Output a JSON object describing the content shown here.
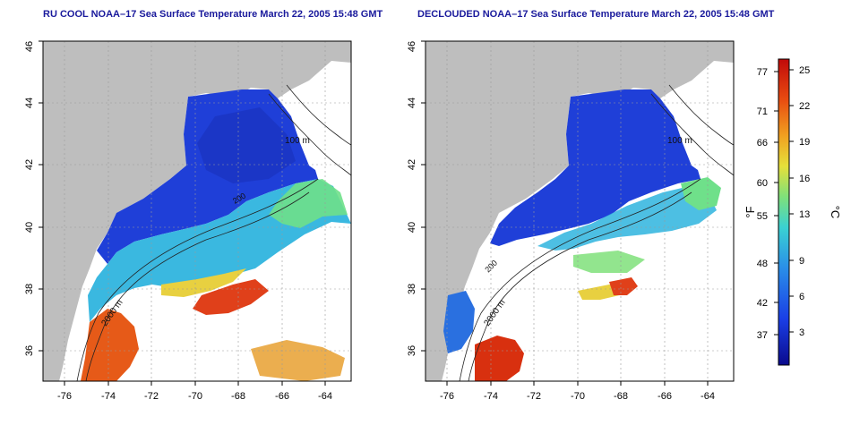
{
  "panels": [
    {
      "title": "RU COOL NOAA–17 Sea Surface Temperature March 22, 2005 15:48 GMT",
      "contour_labels": [
        "100 m",
        "200",
        "2000 m"
      ]
    },
    {
      "title": "DECLOUDED NOAA–17 Sea Surface Temperature March 22, 2005 15:48 GMT",
      "contour_labels": [
        "100 m",
        "200",
        "2000 m"
      ]
    }
  ],
  "axes": {
    "x_ticks": [
      "-76",
      "-74",
      "-72",
      "-70",
      "-68",
      "-66",
      "-64"
    ],
    "y_ticks": [
      "36",
      "38",
      "40",
      "42",
      "44",
      "46"
    ],
    "x_range": [
      -77.2,
      -63.0
    ],
    "y_range": [
      35.0,
      46.0
    ]
  },
  "colorbar": {
    "fahrenheit_ticks": [
      "77",
      "71",
      "66",
      "60",
      "55",
      "48",
      "42",
      "37"
    ],
    "celsius_ticks": [
      "25",
      "22",
      "19",
      "16",
      "13",
      "9",
      "6",
      "3"
    ],
    "fahrenheit_label": "°F",
    "celsius_label": "°C",
    "colors": [
      "#0a0a8c",
      "#1a3ee6",
      "#2a90e8",
      "#3ad2d2",
      "#7fe07a",
      "#e6e03a",
      "#f0a020",
      "#e84a10",
      "#c00a0a"
    ]
  },
  "colors": {
    "land": "#bebebe",
    "title": "#1a1a9c"
  }
}
